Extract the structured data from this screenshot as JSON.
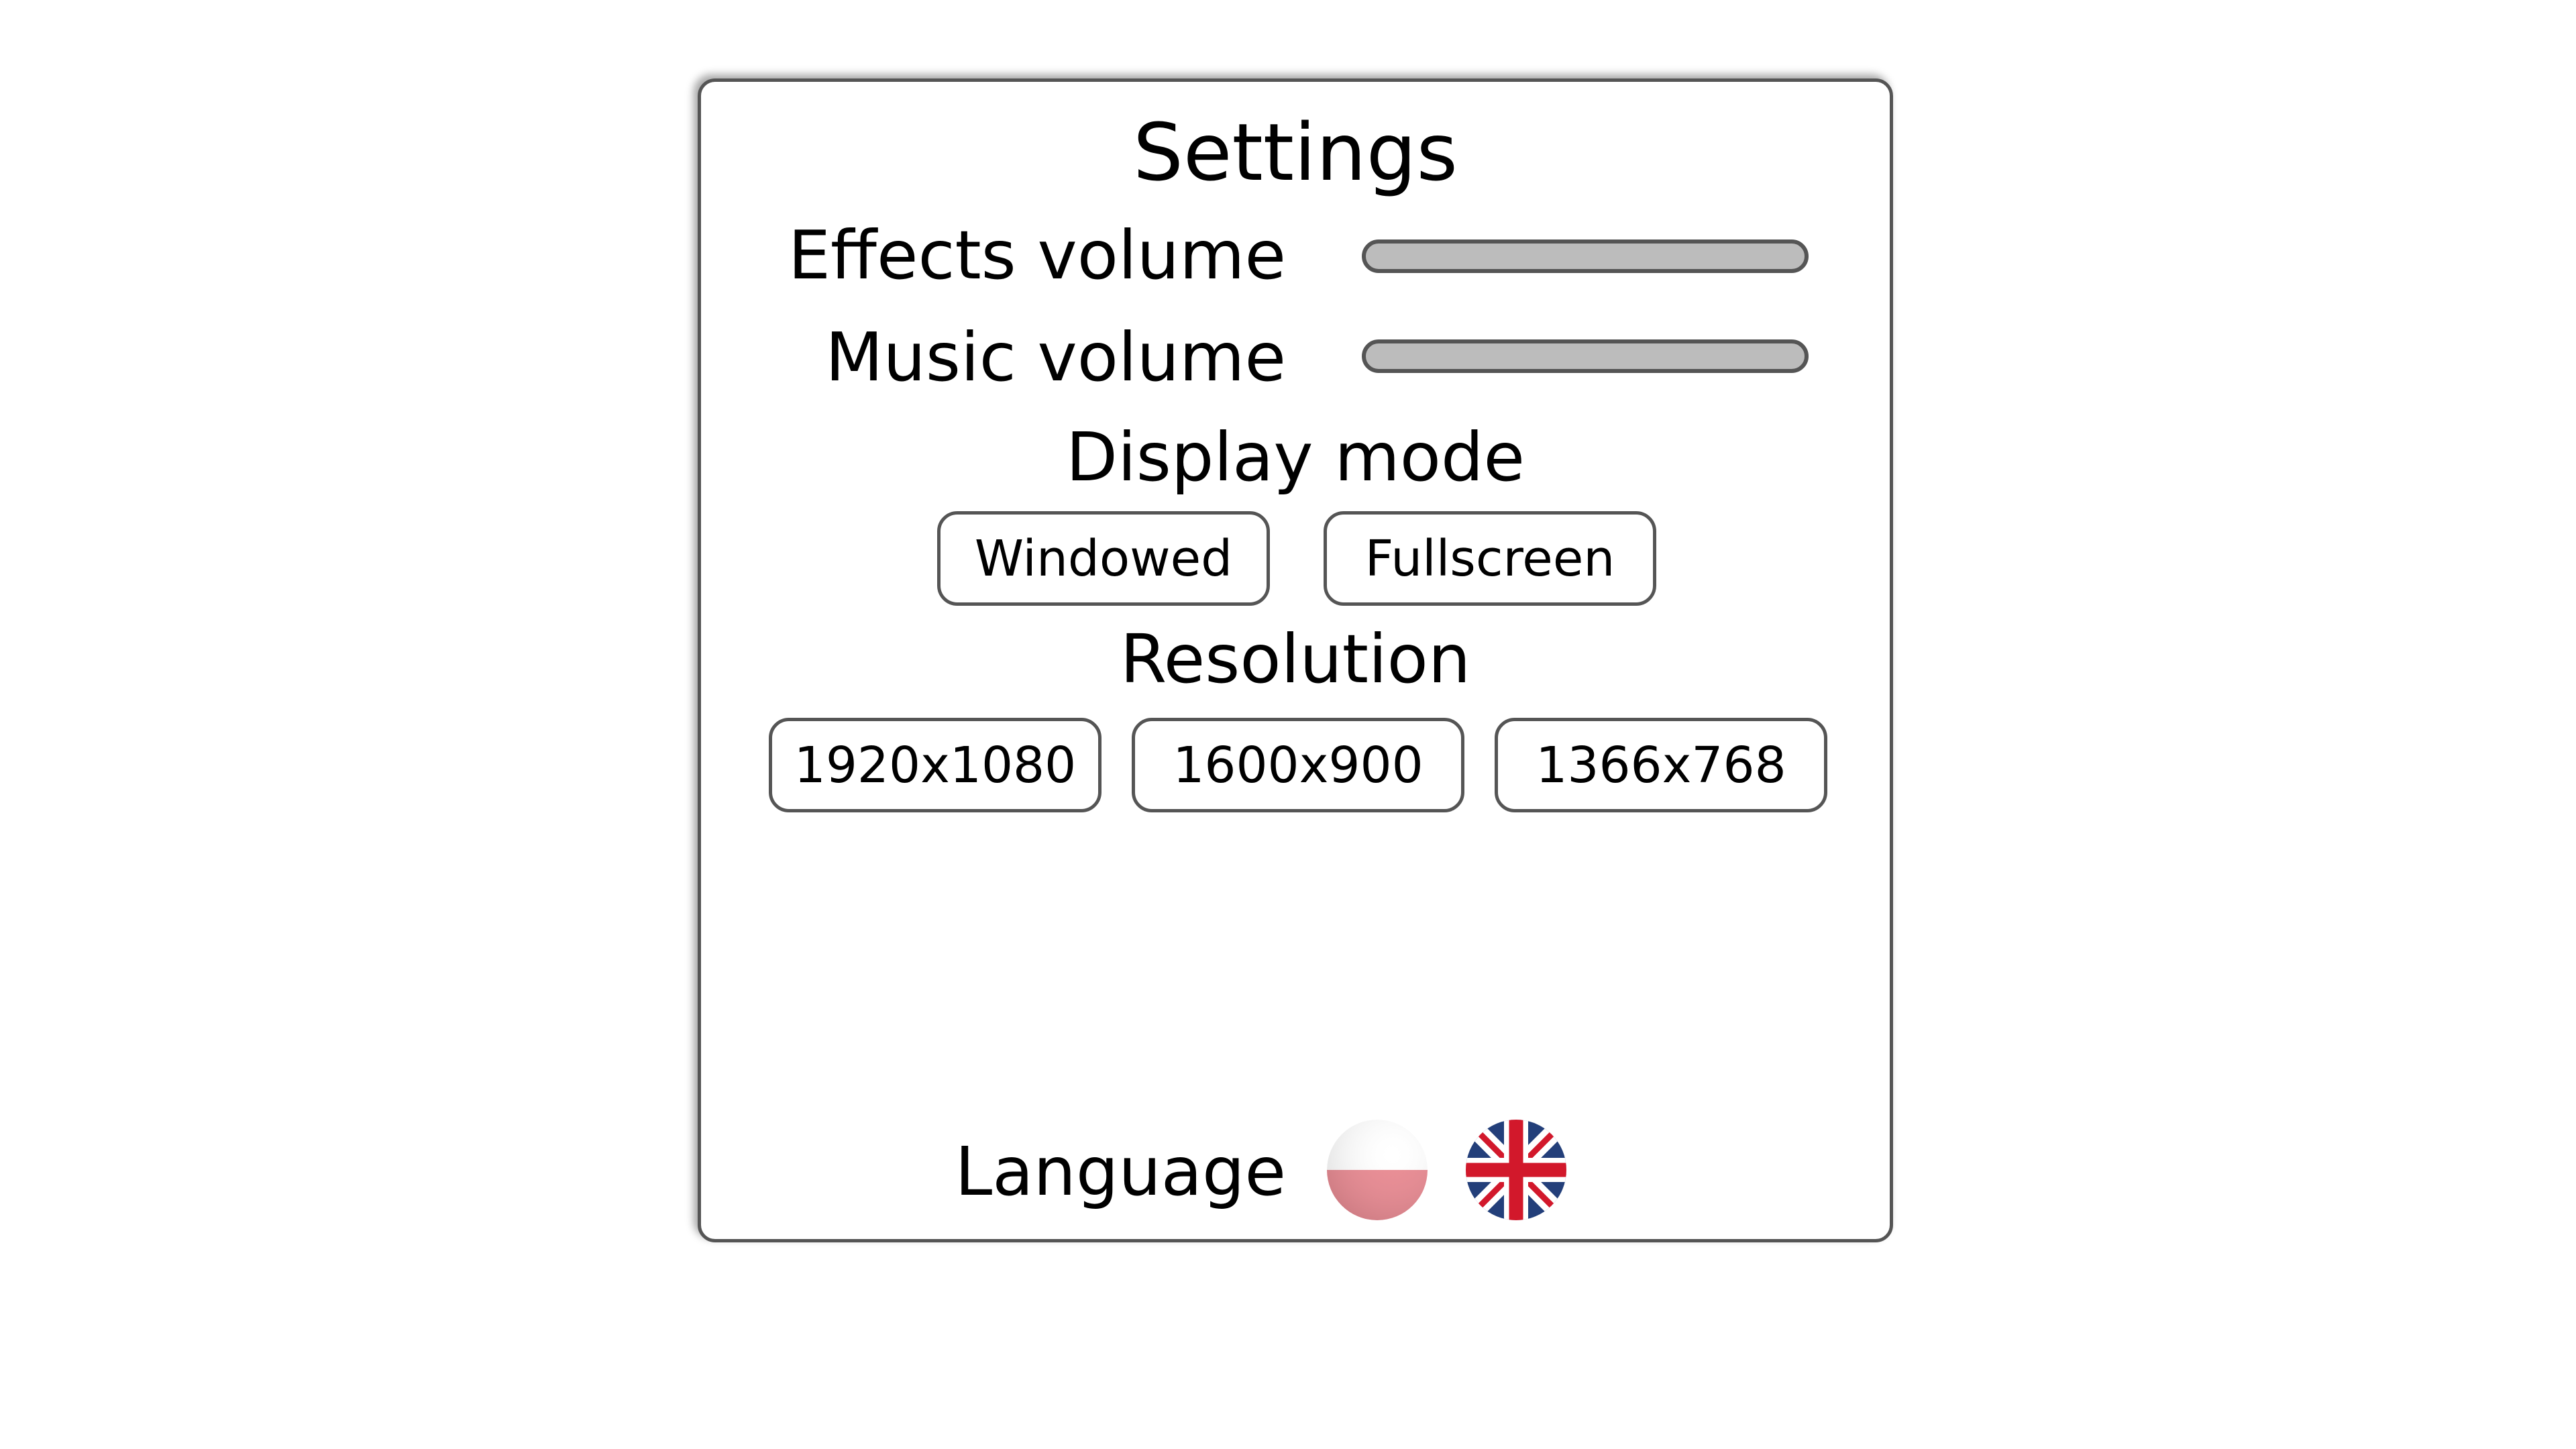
{
  "settings": {
    "title": "Settings",
    "effects_label": "Effects volume",
    "music_label": "Music volume",
    "display_mode_label": "Display mode",
    "display_modes": [
      "Windowed",
      "Fullscreen"
    ],
    "resolution_label": "Resolution",
    "resolutions": [
      "1920x1080",
      "1600x900",
      "1366x768"
    ],
    "language_label": "Language",
    "languages": [
      "polish-flag-icon",
      "uk-flag-icon"
    ]
  },
  "colors": {
    "border": "#555555",
    "slider_fill": "#bcbcbc",
    "background": "#ffffff"
  }
}
